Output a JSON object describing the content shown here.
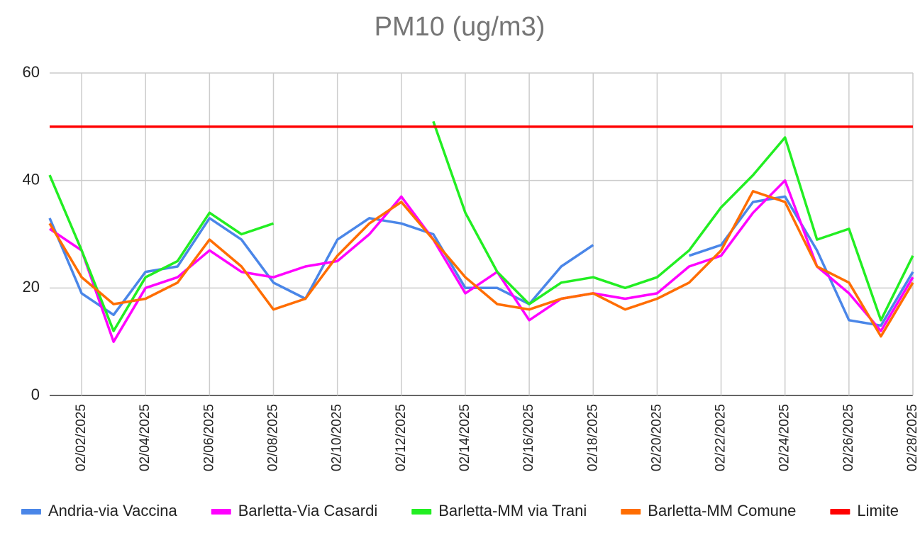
{
  "chart_data": {
    "type": "line",
    "title": "PM10 (ug/m3)",
    "categories": [
      null,
      "02/02/2025",
      null,
      "02/04/2025",
      null,
      "02/06/2025",
      null,
      "02/08/2025",
      null,
      "02/10/2025",
      null,
      "02/12/2025",
      null,
      "02/14/2025",
      null,
      "02/16/2025",
      null,
      "02/18/2025",
      null,
      "02/20/2025",
      null,
      "02/22/2025",
      null,
      "02/24/2025",
      null,
      "02/26/2025",
      null,
      "02/28/2025"
    ],
    "series": [
      {
        "name": "Andria-via Vaccina",
        "color": "#4a86e8",
        "values": [
          33,
          19,
          15,
          23,
          24,
          33,
          29,
          21,
          18,
          29,
          33,
          32,
          30,
          20,
          20,
          17,
          24,
          28,
          null,
          null,
          26,
          28,
          36,
          37,
          27,
          14,
          13,
          23
        ]
      },
      {
        "name": "Barletta-Via Casardi",
        "color": "#ff00ff",
        "values": [
          31,
          27,
          10,
          20,
          22,
          27,
          23,
          22,
          24,
          25,
          30,
          37,
          29,
          19,
          23,
          14,
          18,
          19,
          18,
          19,
          24,
          26,
          34,
          40,
          24,
          19,
          12,
          22
        ]
      },
      {
        "name": "Barletta-MM via Trani",
        "color": "#22ee22",
        "values": [
          41,
          27,
          12,
          22,
          25,
          34,
          30,
          32,
          null,
          null,
          null,
          null,
          51,
          34,
          23,
          17,
          21,
          22,
          20,
          22,
          27,
          35,
          41,
          48,
          29,
          31,
          14,
          26
        ]
      },
      {
        "name": "Barletta-MM Comune",
        "color": "#ff6d01",
        "values": [
          32,
          22,
          17,
          18,
          21,
          29,
          24,
          16,
          18,
          26,
          32,
          36,
          29,
          22,
          17,
          16,
          18,
          19,
          16,
          18,
          21,
          27,
          38,
          36,
          24,
          21,
          11,
          21
        ]
      },
      {
        "name": "Limite",
        "color": "#ff0000",
        "values": [
          50,
          50,
          50,
          50,
          50,
          50,
          50,
          50,
          50,
          50,
          50,
          50,
          50,
          50,
          50,
          50,
          50,
          50,
          50,
          50,
          50,
          50,
          50,
          50,
          50,
          50,
          50,
          50
        ]
      }
    ],
    "ylim": [
      0,
      60
    ],
    "yticks": [
      0,
      20,
      40,
      60
    ],
    "grid": true
  }
}
